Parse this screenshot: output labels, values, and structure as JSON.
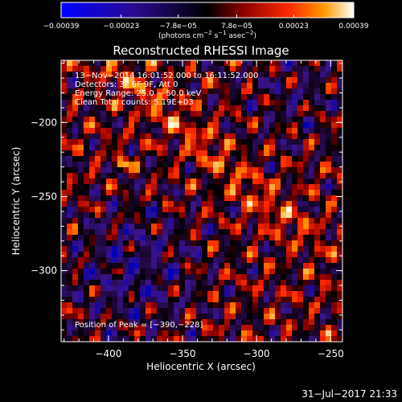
{
  "chart_data": {
    "type": "heatmap",
    "title": "Reconstructed RHESSI Image",
    "xlabel": "Heliocentric X (arcsec)",
    "ylabel": "Heliocentric Y (arcsec)",
    "xlim": [
      -432,
      -242
    ],
    "ylim": [
      -348,
      -158
    ],
    "x_ticks": [
      -400,
      -350,
      -300,
      -250
    ],
    "x_tick_labels": [
      "−400",
      "−350",
      "−300",
      "−250"
    ],
    "y_ticks": [
      -300,
      -250,
      -200
    ],
    "y_tick_labels": [
      "−300",
      "−250",
      "−200"
    ],
    "colorbar": {
      "range": [
        -0.00039,
        0.00039
      ],
      "ticks": [
        -0.00039,
        -0.00023,
        -7.8e-05,
        7.8e-05,
        0.00023,
        0.00039
      ],
      "tick_labels": [
        "−0.00039",
        "−0.00023",
        "−7.8e−05",
        "7.8e−05",
        "0.00023",
        "0.00039"
      ],
      "unit_text": "(photons cm",
      "unit_exp1": "−2",
      "unit_mid1": " s",
      "unit_exp2": "−1",
      "unit_mid2": " asec",
      "unit_exp3": "−2",
      "unit_end": ")"
    },
    "annotations": [
      "13−Nov−2014 16:01:52.000 to 16:11:52.000",
      "Detectors: 3F 6F 9F, Att 0",
      "Energy Range: 25.0 − 50.0 keV",
      "Clean    Total counts: 5.19E+03"
    ],
    "peak_label": "Position of Peak = [−390,−228]",
    "peak": [
      -390,
      -228
    ],
    "grid": false
  },
  "footer_date": "31−Jul−2017 21:33"
}
